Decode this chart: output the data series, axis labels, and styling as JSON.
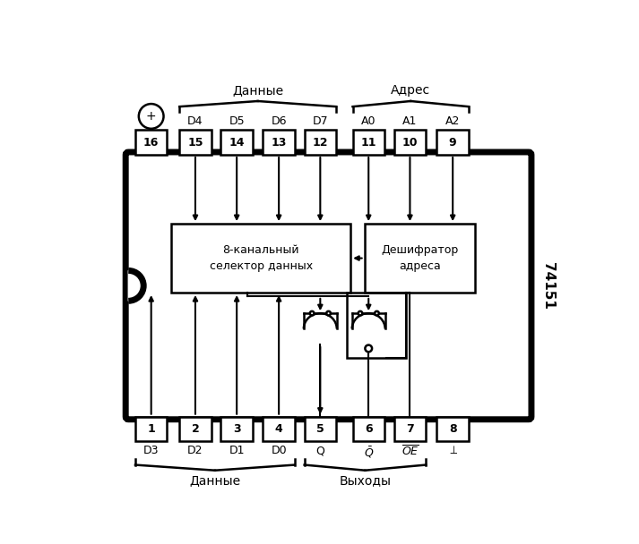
{
  "fig_w": 7.13,
  "fig_h": 6.08,
  "dpi": 100,
  "title": "74151",
  "top_pin_labels": [
    "D4",
    "D5",
    "D6",
    "D7",
    "A0",
    "A1",
    "A2"
  ],
  "top_pin_nums": [
    "15",
    "14",
    "13",
    "12",
    "11",
    "10",
    "9"
  ],
  "bot_pin_labels_left": [
    "D3",
    "D2",
    "D1",
    "D0"
  ],
  "bot_pin_nums_left": [
    "1",
    "2",
    "3",
    "4"
  ],
  "bot_pin_nums_right": [
    "5",
    "6",
    "7",
    "8"
  ],
  "sel_label1": "8-канальный",
  "sel_label2": "селектор данных",
  "dec_label1": "Дешифратор",
  "dec_label2": "адреса",
  "brace_top_data": "Данные",
  "brace_top_addr": "Адрес",
  "brace_bot_data": "Данные",
  "brace_bot_out": "Выходы",
  "ic_num_label": "74151"
}
